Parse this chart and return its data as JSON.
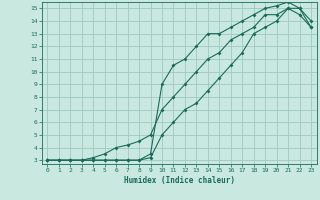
{
  "xlabel": "Humidex (Indice chaleur)",
  "xlim": [
    -0.5,
    23.5
  ],
  "ylim": [
    2.7,
    15.5
  ],
  "xticks": [
    0,
    1,
    2,
    3,
    4,
    5,
    6,
    7,
    8,
    9,
    10,
    11,
    12,
    13,
    14,
    15,
    16,
    17,
    18,
    19,
    20,
    21,
    22,
    23
  ],
  "yticks": [
    3,
    4,
    5,
    6,
    7,
    8,
    9,
    10,
    11,
    12,
    13,
    14,
    15
  ],
  "background_color": "#c8e8e0",
  "grid_color": "#a0c8c0",
  "line_color": "#1a6b5a",
  "line1_x": [
    0,
    1,
    2,
    3,
    4,
    5,
    6,
    7,
    8,
    9,
    10,
    11,
    12,
    13,
    14,
    15,
    16,
    17,
    18,
    19,
    20,
    21,
    22,
    23
  ],
  "line1_y": [
    3,
    3,
    3,
    3,
    3.2,
    3.5,
    4,
    4.2,
    4.5,
    5,
    7,
    8,
    9,
    10,
    11,
    11.5,
    12.5,
    13,
    13.5,
    14.5,
    14.5,
    15,
    15,
    13.5
  ],
  "line2_x": [
    0,
    1,
    2,
    3,
    4,
    5,
    6,
    7,
    8,
    9,
    10,
    11,
    12,
    13,
    14,
    15,
    16,
    17,
    18,
    19,
    20,
    21,
    22,
    23
  ],
  "line2_y": [
    3,
    3,
    3,
    3,
    3,
    3,
    3,
    3,
    3,
    3.5,
    9,
    10.5,
    11,
    12,
    13,
    13,
    13.5,
    14,
    14.5,
    15,
    15.2,
    15.5,
    15,
    14
  ],
  "line3_x": [
    0,
    1,
    2,
    3,
    4,
    5,
    6,
    7,
    8,
    9,
    10,
    11,
    12,
    13,
    14,
    15,
    16,
    17,
    18,
    19,
    20,
    21,
    22,
    23
  ],
  "line3_y": [
    3,
    3,
    3,
    3,
    3,
    3,
    3,
    3,
    3,
    3.2,
    5,
    6,
    7,
    7.5,
    8.5,
    9.5,
    10.5,
    11.5,
    13,
    13.5,
    14,
    15,
    14.5,
    13.5
  ]
}
